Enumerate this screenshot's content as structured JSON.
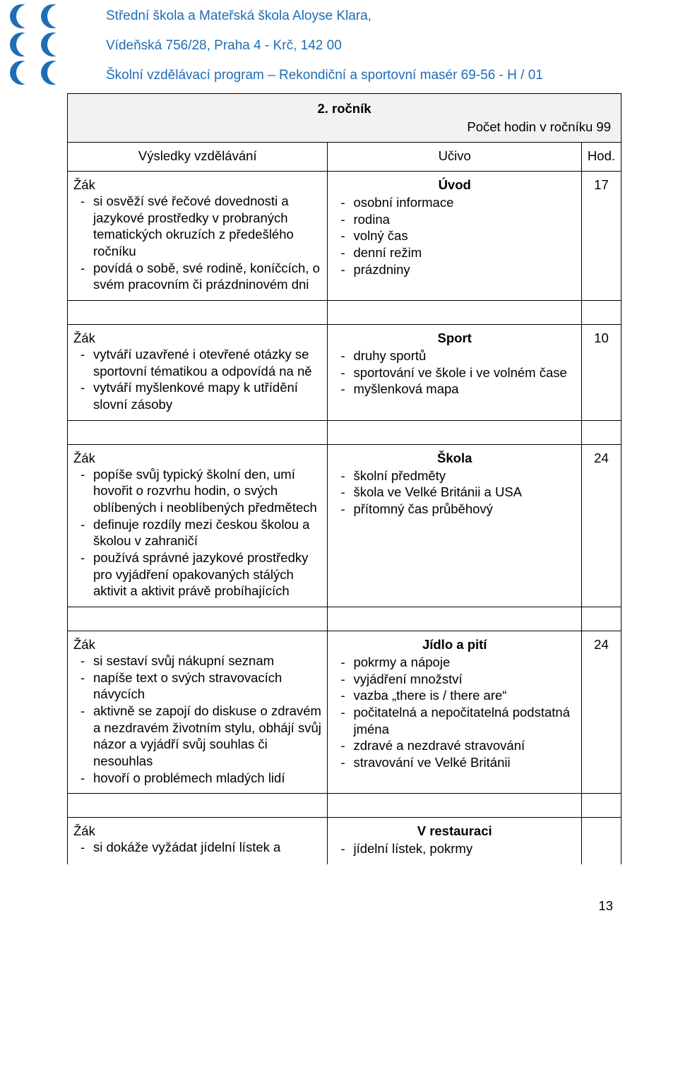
{
  "meta": {
    "page_number": "13"
  },
  "colors": {
    "brand_blue": "#1f6db5",
    "header_gray_bg": "#f2f2f2",
    "text": "#000000",
    "bg": "#ffffff",
    "border": "#000000"
  },
  "header": {
    "line1": "Střední škola a Mateřská škola Aloyse Klara,",
    "line2": "Vídeňská 756/28, Praha 4 - Krč, 142 00",
    "line3": "Školní vzdělávací program – Rekondiční a sportovní masér 69-56 - H / 01"
  },
  "year_row": {
    "title": "2. ročník",
    "hours_label": "Počet hodin v ročníku 99"
  },
  "head_row": {
    "left": "Výsledky vzdělávání",
    "mid": "Učivo",
    "right": "Hod."
  },
  "sections": [
    {
      "student_label": "Žák",
      "left_items": [
        "si osvěží své řečové dovednosti a jazykové prostředky v probraných tematických okruzích z předešlého ročníku",
        "povídá o sobě, své rodině, koníčcích, o svém pracovním či prázdninovém dni"
      ],
      "topic_title": "Úvod",
      "mid_items": [
        "osobní informace",
        "rodina",
        "volný čas",
        "denní režim",
        "prázdniny"
      ],
      "hours": "17"
    },
    {
      "student_label": "Žák",
      "left_items": [
        "vytváří uzavřené i otevřené otázky se sportovní tématikou a odpovídá na ně",
        "vytváří myšlenkové mapy k utřídění slovní zásoby"
      ],
      "topic_title": "Sport",
      "mid_items": [
        "druhy sportů",
        "sportování ve škole i ve volném čase",
        "myšlenková mapa"
      ],
      "hours": "10"
    },
    {
      "student_label": "Žák",
      "left_items": [
        "popíše svůj typický školní den, umí hovořit o rozvrhu hodin, o svých oblíbených i neoblíbených předmětech",
        "definuje rozdíly mezi českou školou a školou v zahraničí",
        "používá správné jazykové prostředky pro vyjádření opakovaných stálých aktivit a aktivit právě probíhajících"
      ],
      "topic_title": "Škola",
      "mid_items": [
        "školní předměty",
        "škola ve Velké Británii a USA",
        "přítomný čas průběhový"
      ],
      "hours": "24"
    },
    {
      "student_label": "Žák",
      "left_items": [
        "si sestaví svůj nákupní seznam",
        "napíše text o svých stravovacích návycích",
        "aktivně se zapojí do diskuse o zdravém a nezdravém životním stylu, obhájí svůj názor a vyjádří svůj souhlas či nesouhlas",
        "hovoří o problémech mladých lidí"
      ],
      "topic_title": "Jídlo a pití",
      "mid_items": [
        "pokrmy a nápoje",
        "vyjádření množství",
        "vazba „there is / there are“",
        "počitatelná a nepočitatelná podstatná jména",
        "zdravé a nezdravé stravování",
        "stravování ve Velké Británii"
      ],
      "hours": "24"
    },
    {
      "student_label": "Žák",
      "left_items": [
        "si dokáže vyžádat jídelní lístek a"
      ],
      "topic_title": "V restauraci",
      "mid_items": [
        "jídelní lístek, pokrmy"
      ],
      "hours": ""
    }
  ]
}
